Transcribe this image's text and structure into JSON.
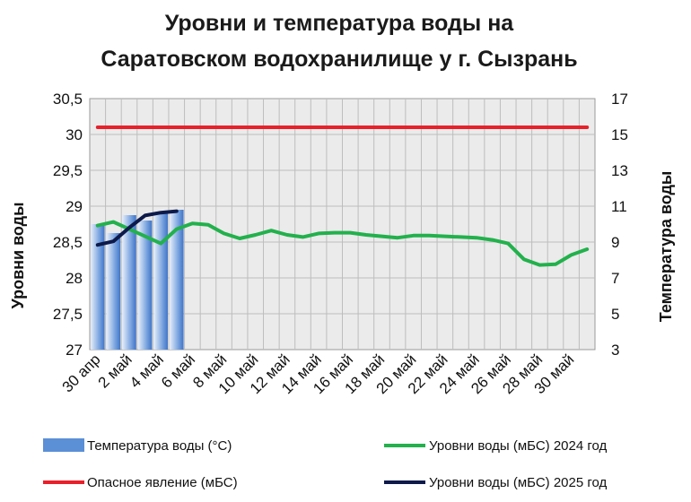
{
  "chart_data": {
    "type": "bar+line",
    "title_line1": "Уровни и температура воды на",
    "title_line2": "Саратовском водохранилище у г. Сызрань",
    "y_left_label": "Уровни воды",
    "y_right_label": "Температура воды",
    "y_left_range": [
      27,
      30.5
    ],
    "y_left_ticks": [
      "27",
      "27,5",
      "28",
      "28,5",
      "29",
      "29,5",
      "30",
      "30,5"
    ],
    "y_right_range": [
      3,
      17
    ],
    "y_right_ticks": [
      "3",
      "5",
      "7",
      "9",
      "11",
      "13",
      "15",
      "17"
    ],
    "x_tick_labels": [
      "30 апр",
      "2 май",
      "4 май",
      "6 май",
      "8 май",
      "10 май",
      "12 май",
      "14 май",
      "16 май",
      "18 май",
      "20 май",
      "22 май",
      "24 май",
      "26 май",
      "28 май",
      "30 май"
    ],
    "days": 32,
    "grid": true,
    "legend_position": "bottom",
    "series": [
      {
        "name": "Температура воды (°С)",
        "kind": "bar",
        "axis": "right",
        "color": "#5b8fd6",
        "values": [
          10.0,
          9.5,
          10.5,
          10.2,
          10.7,
          10.8
        ]
      },
      {
        "name": "Уровни воды (мБС) 2024 год",
        "kind": "line",
        "axis": "left",
        "color": "#22b14c",
        "values": [
          28.73,
          28.78,
          28.68,
          28.58,
          28.48,
          28.68,
          28.76,
          28.74,
          28.62,
          28.55,
          28.6,
          28.66,
          28.6,
          28.57,
          28.62,
          28.63,
          28.63,
          28.6,
          28.58,
          28.56,
          28.59,
          28.59,
          28.58,
          28.57,
          28.56,
          28.53,
          28.48,
          28.26,
          28.18,
          28.19,
          28.32,
          28.4
        ]
      },
      {
        "name": "Опасное явление (мБС)",
        "kind": "line",
        "axis": "left",
        "color": "#e8202a",
        "values": [
          30.1,
          30.1,
          30.1,
          30.1,
          30.1,
          30.1,
          30.1,
          30.1,
          30.1,
          30.1,
          30.1,
          30.1,
          30.1,
          30.1,
          30.1,
          30.1,
          30.1,
          30.1,
          30.1,
          30.1,
          30.1,
          30.1,
          30.1,
          30.1,
          30.1,
          30.1,
          30.1,
          30.1,
          30.1,
          30.1,
          30.1,
          30.1
        ]
      },
      {
        "name": "Уровни воды (мБС) 2025 год",
        "kind": "line",
        "axis": "left",
        "color": "#0d1a4a",
        "values": [
          28.46,
          28.51,
          28.7,
          28.87,
          28.91,
          28.93
        ]
      }
    ],
    "legend": {
      "bar": "Температура воды (°С)",
      "green": "Уровни воды (мБС) 2024 год",
      "red": "Опасное явление (мБС)",
      "navy": "Уровни воды (мБС) 2025 год"
    }
  }
}
